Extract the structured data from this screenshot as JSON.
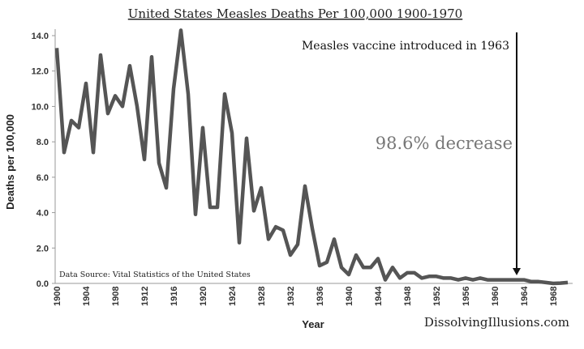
{
  "chart_data": {
    "type": "line",
    "title": "United States Measles Deaths Per 100,000 1900-1970",
    "xlabel": "Year",
    "ylabel": "Deaths per 100,000",
    "xlim": [
      1900,
      1970
    ],
    "ylim": [
      0,
      14
    ],
    "yticks": [
      "0.0",
      "2.0",
      "4.0",
      "6.0",
      "8.0",
      "10.0",
      "12.0",
      "14.0"
    ],
    "xticks": [
      "1900",
      "1904",
      "1908",
      "1912",
      "1916",
      "1920",
      "1924",
      "1928",
      "1932",
      "1936",
      "1940",
      "1944",
      "1948",
      "1952",
      "1956",
      "1960",
      "1964",
      "1968"
    ],
    "grid": false,
    "line_color": "#555555",
    "x": [
      1900,
      1901,
      1902,
      1903,
      1904,
      1905,
      1906,
      1907,
      1908,
      1909,
      1910,
      1911,
      1912,
      1913,
      1914,
      1915,
      1916,
      1917,
      1918,
      1919,
      1920,
      1921,
      1922,
      1923,
      1924,
      1925,
      1926,
      1927,
      1928,
      1929,
      1930,
      1931,
      1932,
      1933,
      1934,
      1935,
      1936,
      1937,
      1938,
      1939,
      1940,
      1941,
      1942,
      1943,
      1944,
      1945,
      1946,
      1947,
      1948,
      1949,
      1950,
      1951,
      1952,
      1953,
      1954,
      1955,
      1956,
      1957,
      1958,
      1959,
      1960,
      1961,
      1962,
      1963,
      1964,
      1965,
      1966,
      1967,
      1968,
      1969,
      1970
    ],
    "values": [
      13.3,
      7.4,
      9.2,
      8.8,
      11.3,
      7.4,
      12.9,
      9.6,
      10.6,
      10.0,
      12.3,
      10.0,
      7.0,
      12.8,
      6.8,
      5.4,
      11.0,
      14.3,
      10.7,
      3.9,
      8.8,
      4.3,
      4.3,
      10.7,
      8.5,
      2.3,
      8.2,
      4.1,
      5.4,
      2.5,
      3.2,
      3.0,
      1.6,
      2.2,
      5.5,
      3.1,
      1.0,
      1.2,
      2.5,
      0.9,
      0.5,
      1.6,
      0.9,
      0.9,
      1.4,
      0.2,
      0.9,
      0.3,
      0.6,
      0.6,
      0.3,
      0.4,
      0.4,
      0.3,
      0.3,
      0.2,
      0.3,
      0.2,
      0.3,
      0.2,
      0.2,
      0.2,
      0.2,
      0.2,
      0.2,
      0.1,
      0.1,
      0.05,
      0.0,
      0.02,
      0.05
    ],
    "annotations": {
      "vaccine": "Measles vaccine introduced in 1963",
      "vaccine_year": 1963,
      "decrease": "98.6% decrease",
      "source": "Data Source:  Vital Statistics of the United States",
      "site": "DissolvingIllusions.com"
    }
  }
}
